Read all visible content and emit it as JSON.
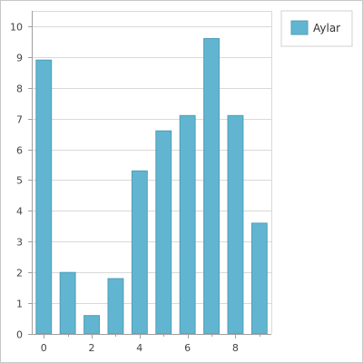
{
  "colors": {
    "bar_fill": "#62b5d0",
    "bar_stroke": "#4f9fb9",
    "grid": "#d9d9d9",
    "axis": "#a0a0a0",
    "legend_border": "#d0d0d0"
  },
  "chart_data": {
    "type": "bar",
    "x": [
      0,
      1,
      2,
      3,
      4,
      5,
      6,
      7,
      8,
      9
    ],
    "x_tick_labels": [
      "0",
      "2",
      "4",
      "6",
      "8"
    ],
    "y_tick_labels": [
      "0",
      "1",
      "2",
      "3",
      "4",
      "5",
      "6",
      "7",
      "8",
      "9",
      "10"
    ],
    "series": [
      {
        "name": "Aylar",
        "values": [
          8.9,
          2.0,
          0.6,
          1.8,
          5.3,
          6.6,
          7.1,
          9.6,
          7.1,
          3.6
        ]
      }
    ],
    "ylim": [
      0,
      10.5
    ],
    "xlim": [
      -0.5,
      9.5
    ],
    "grid": true,
    "legend_position": "top-right"
  }
}
